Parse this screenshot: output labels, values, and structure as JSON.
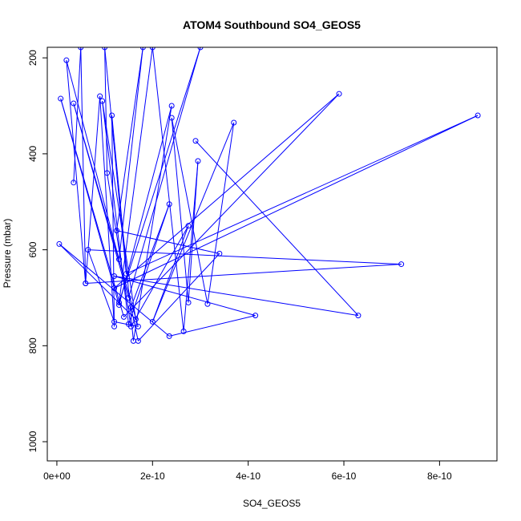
{
  "chart_data": {
    "type": "line",
    "title": "ATOM4 Southbound SO4_GEOS5",
    "xlabel": "SO4_GEOS5",
    "ylabel": "Pressure (mbar)",
    "xlim": [
      -2e-11,
      9.2e-10
    ],
    "ylim": [
      1040,
      178
    ],
    "y_reversed": true,
    "x_ticks": [
      0,
      2e-10,
      4e-10,
      6e-10,
      8e-10
    ],
    "x_tick_labels": [
      "0e+00",
      "2e-10",
      "4e-10",
      "6e-10",
      "8e-10"
    ],
    "y_ticks": [
      200,
      400,
      600,
      800,
      1000
    ],
    "y_tick_labels": [
      "200",
      "400",
      "600",
      "800",
      "1000"
    ],
    "line_color": "#0000ff",
    "marker": "open-circle",
    "series": [
      {
        "values": [
          {
            "x": 3.5e-11,
            "y": 460
          },
          {
            "x": 5e-11,
            "y": 178
          },
          {
            "x": 6e-11,
            "y": 670
          },
          {
            "x": 9e-11,
            "y": 280
          },
          {
            "x": 1.2e-10,
            "y": 760
          },
          {
            "x": 1.15e-10,
            "y": 320
          },
          {
            "x": 1.6e-10,
            "y": 790
          },
          {
            "x": 2.4e-10,
            "y": 300
          },
          {
            "x": 1.3e-10,
            "y": 715
          },
          {
            "x": 8e-12,
            "y": 285
          },
          {
            "x": 1.4e-10,
            "y": 740
          },
          {
            "x": 5.9e-10,
            "y": 275
          },
          {
            "x": 1.2e-10,
            "y": 680
          },
          {
            "x": 8.8e-10,
            "y": 320
          },
          {
            "x": 1.45e-10,
            "y": 650
          },
          {
            "x": 1e-10,
            "y": 178
          },
          {
            "x": 1.05e-10,
            "y": 440
          },
          {
            "x": 1.55e-10,
            "y": 760
          },
          {
            "x": 2.75e-10,
            "y": 550
          },
          {
            "x": 2e-10,
            "y": 750
          },
          {
            "x": 3.7e-10,
            "y": 335
          },
          {
            "x": 3.15e-10,
            "y": 713
          },
          {
            "x": 2.4e-10,
            "y": 325
          },
          {
            "x": 2.75e-10,
            "y": 710
          },
          {
            "x": 2.95e-10,
            "y": 415
          },
          {
            "x": 2.65e-10,
            "y": 770
          },
          {
            "x": 2e-10,
            "y": 178
          },
          {
            "x": 1.3e-10,
            "y": 710
          },
          {
            "x": 3e-10,
            "y": 178
          },
          {
            "x": 1.5e-10,
            "y": 700
          },
          {
            "x": 3.5e-11,
            "y": 295
          },
          {
            "x": 1.7e-10,
            "y": 760
          },
          {
            "x": 1.2e-10,
            "y": 750
          },
          {
            "x": 6.5e-11,
            "y": 600
          },
          {
            "x": 7.2e-10,
            "y": 630
          },
          {
            "x": 6e-11,
            "y": 670
          },
          {
            "x": 2e-11,
            "y": 205
          },
          {
            "x": 1.3e-10,
            "y": 620
          },
          {
            "x": 1.8e-10,
            "y": 178
          },
          {
            "x": 1.25e-10,
            "y": 560
          },
          {
            "x": 3.4e-10,
            "y": 608
          },
          {
            "x": 1.7e-10,
            "y": 790
          },
          {
            "x": 1.55e-10,
            "y": 720
          },
          {
            "x": 2.35e-10,
            "y": 505
          },
          {
            "x": 1.5e-10,
            "y": 755
          },
          {
            "x": 9.5e-11,
            "y": 290
          },
          {
            "x": 1.65e-10,
            "y": 745
          },
          {
            "x": 5e-12,
            "y": 588
          },
          {
            "x": 2.35e-10,
            "y": 780
          },
          {
            "x": 4.15e-10,
            "y": 737
          },
          {
            "x": 1.2e-10,
            "y": 655
          },
          {
            "x": 6.3e-10,
            "y": 737
          },
          {
            "x": 2.9e-10,
            "y": 373
          }
        ]
      }
    ]
  }
}
